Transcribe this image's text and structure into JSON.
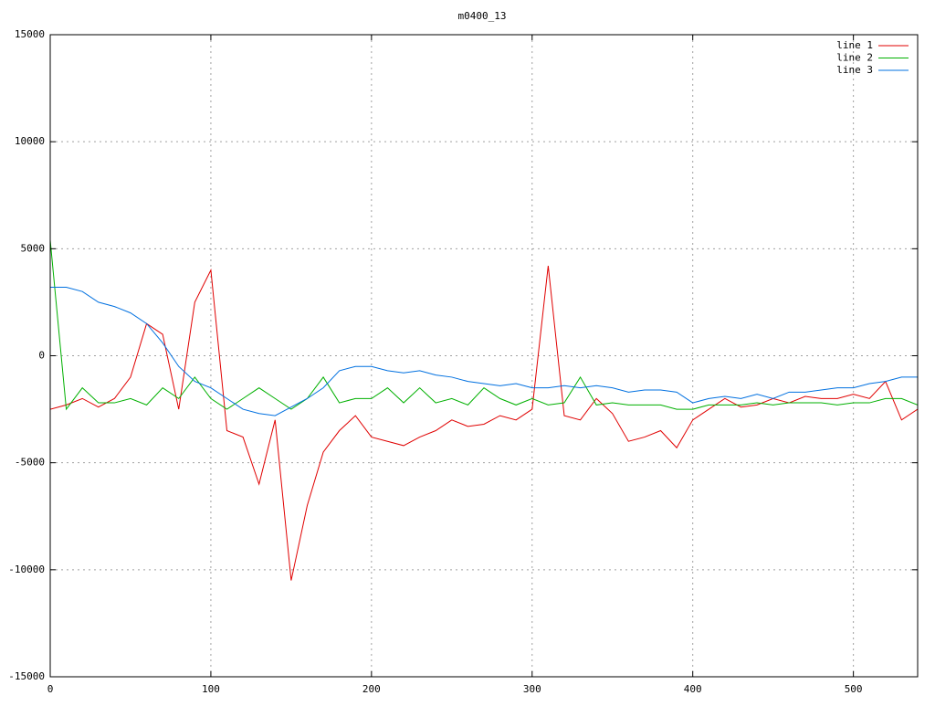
{
  "chart_data": {
    "type": "line",
    "title": "m0400_13",
    "x": [
      0,
      10,
      20,
      30,
      40,
      50,
      60,
      70,
      80,
      90,
      100,
      110,
      120,
      130,
      140,
      150,
      160,
      170,
      180,
      190,
      200,
      210,
      220,
      230,
      240,
      250,
      260,
      270,
      280,
      290,
      300,
      310,
      320,
      330,
      340,
      350,
      360,
      370,
      380,
      390,
      400,
      410,
      420,
      430,
      440,
      450,
      460,
      470,
      480,
      490,
      500,
      510,
      520,
      530,
      540
    ],
    "series": [
      {
        "name": "line 1",
        "color": "#e00000",
        "values": [
          -2500,
          -2300,
          -2000,
          -2400,
          -2000,
          -1000,
          1500,
          1000,
          -2500,
          2500,
          4000,
          -3500,
          -3800,
          -6000,
          -3000,
          -10500,
          -7000,
          -4500,
          -3500,
          -2800,
          -3800,
          -4000,
          -4200,
          -3800,
          -3500,
          -3000,
          -3300,
          -3200,
          -2800,
          -3000,
          -2500,
          4200,
          -2800,
          -3000,
          -2000,
          -2700,
          -4000,
          -3800,
          -3500,
          -4300,
          -3000,
          -2500,
          -2000,
          -2400,
          -2300,
          -2000,
          -2200,
          -1900,
          -2000,
          -2000,
          -1800,
          -2000,
          -1200,
          -3000,
          -2500
        ]
      },
      {
        "name": "line 2",
        "color": "#00b000",
        "values": [
          5400,
          -2500,
          -1500,
          -2200,
          -2200,
          -2000,
          -2300,
          -1500,
          -2000,
          -1000,
          -2000,
          -2500,
          -2000,
          -1500,
          -2000,
          -2500,
          -2000,
          -1000,
          -2200,
          -2000,
          -2000,
          -1500,
          -2200,
          -1500,
          -2200,
          -2000,
          -2300,
          -1500,
          -2000,
          -2300,
          -2000,
          -2300,
          -2200,
          -1000,
          -2300,
          -2200,
          -2300,
          -2300,
          -2300,
          -2500,
          -2500,
          -2300,
          -2300,
          -2300,
          -2200,
          -2300,
          -2200,
          -2200,
          -2200,
          -2300,
          -2200,
          -2200,
          -2000,
          -2000,
          -2300
        ]
      },
      {
        "name": "line 3",
        "color": "#0070e0",
        "values": [
          3200,
          3200,
          3000,
          2500,
          2300,
          2000,
          1500,
          600,
          -500,
          -1200,
          -1500,
          -2000,
          -2500,
          -2700,
          -2800,
          -2400,
          -2000,
          -1500,
          -700,
          -500,
          -500,
          -700,
          -800,
          -700,
          -900,
          -1000,
          -1200,
          -1300,
          -1400,
          -1300,
          -1500,
          -1500,
          -1400,
          -1500,
          -1400,
          -1500,
          -1700,
          -1600,
          -1600,
          -1700,
          -2200,
          -2000,
          -1900,
          -2000,
          -1800,
          -2000,
          -1700,
          -1700,
          -1600,
          -1500,
          -1500,
          -1300,
          -1200,
          -1000,
          -1000
        ]
      }
    ],
    "xlim": [
      0,
      540
    ],
    "ylim": [
      -15000,
      15000
    ],
    "xticks": [
      0,
      100,
      200,
      300,
      400,
      500
    ],
    "yticks": [
      -15000,
      -10000,
      -5000,
      0,
      5000,
      10000,
      15000
    ],
    "grid": true,
    "legend": "upper right"
  }
}
